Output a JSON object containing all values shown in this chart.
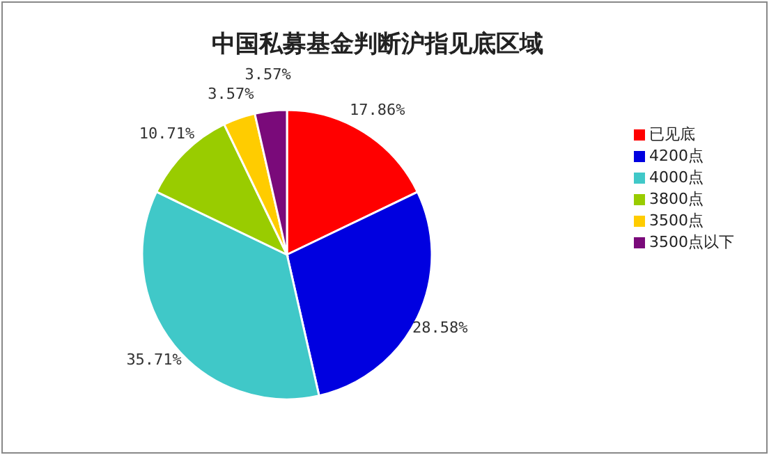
{
  "chart_data": {
    "type": "pie",
    "title": "中国私募基金判断沪指见底区域",
    "categories": [
      "已见底",
      "4200点",
      "4000点",
      "3800点",
      "3500点",
      "3500点以下"
    ],
    "values": [
      17.86,
      28.58,
      35.71,
      10.71,
      3.57,
      3.57
    ],
    "colors": [
      "#ff0000",
      "#0000e0",
      "#40c8c8",
      "#99cc00",
      "#ffcc00",
      "#7a0a7a"
    ],
    "value_labels": [
      "17.86%",
      "28.58%",
      "35.71%",
      "10.71%",
      "3.57%",
      "3.57%"
    ],
    "legend": "right"
  }
}
